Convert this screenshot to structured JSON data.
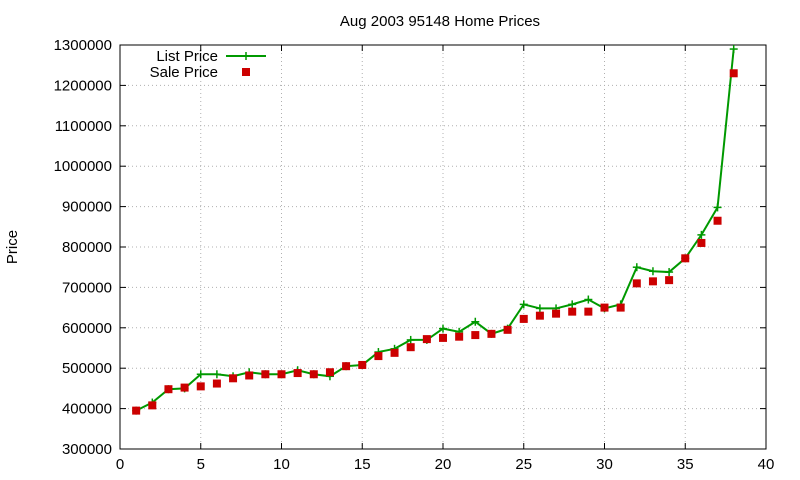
{
  "chart_data": {
    "type": "line",
    "title": "Aug 2003 95148 Home Prices",
    "xlabel": "",
    "ylabel": "Price",
    "xlim": [
      0,
      40
    ],
    "ylim": [
      300000,
      1300000
    ],
    "xticks": [
      0,
      5,
      10,
      15,
      20,
      25,
      30,
      35,
      40
    ],
    "yticks": [
      300000,
      400000,
      500000,
      600000,
      700000,
      800000,
      900000,
      1000000,
      1100000,
      1200000,
      1300000
    ],
    "grid": true,
    "legend": "top-left",
    "series": [
      {
        "name": "List Price",
        "style": "line-with-plus-markers",
        "color": "#009900",
        "x": [
          1,
          2,
          3,
          4,
          5,
          6,
          7,
          8,
          9,
          10,
          11,
          12,
          13,
          14,
          15,
          16,
          17,
          18,
          19,
          20,
          21,
          22,
          23,
          24,
          25,
          26,
          27,
          28,
          29,
          30,
          31,
          32,
          33,
          34,
          35,
          36,
          37,
          38
        ],
        "y": [
          395000,
          415000,
          448000,
          450000,
          485000,
          485000,
          480000,
          490000,
          485000,
          485000,
          495000,
          485000,
          480000,
          505000,
          508000,
          540000,
          548000,
          570000,
          570000,
          598000,
          590000,
          615000,
          585000,
          598000,
          658000,
          648000,
          648000,
          658000,
          670000,
          648000,
          658000,
          750000,
          740000,
          738000,
          772000,
          830000,
          898000,
          1290000
        ]
      },
      {
        "name": "Sale Price",
        "style": "square-markers",
        "color": "#cc0000",
        "x": [
          1,
          2,
          3,
          4,
          5,
          6,
          7,
          8,
          9,
          10,
          11,
          12,
          13,
          14,
          15,
          16,
          17,
          18,
          19,
          20,
          21,
          22,
          23,
          24,
          25,
          26,
          27,
          28,
          29,
          30,
          31,
          32,
          33,
          34,
          35,
          36,
          37,
          38
        ],
        "y": [
          395000,
          408000,
          448000,
          452000,
          455000,
          462000,
          475000,
          482000,
          485000,
          485000,
          488000,
          485000,
          490000,
          505000,
          508000,
          530000,
          538000,
          552000,
          572000,
          575000,
          578000,
          582000,
          585000,
          595000,
          622000,
          630000,
          635000,
          640000,
          640000,
          650000,
          650000,
          710000,
          715000,
          718000,
          772000,
          810000,
          865000,
          1230000
        ]
      }
    ]
  }
}
